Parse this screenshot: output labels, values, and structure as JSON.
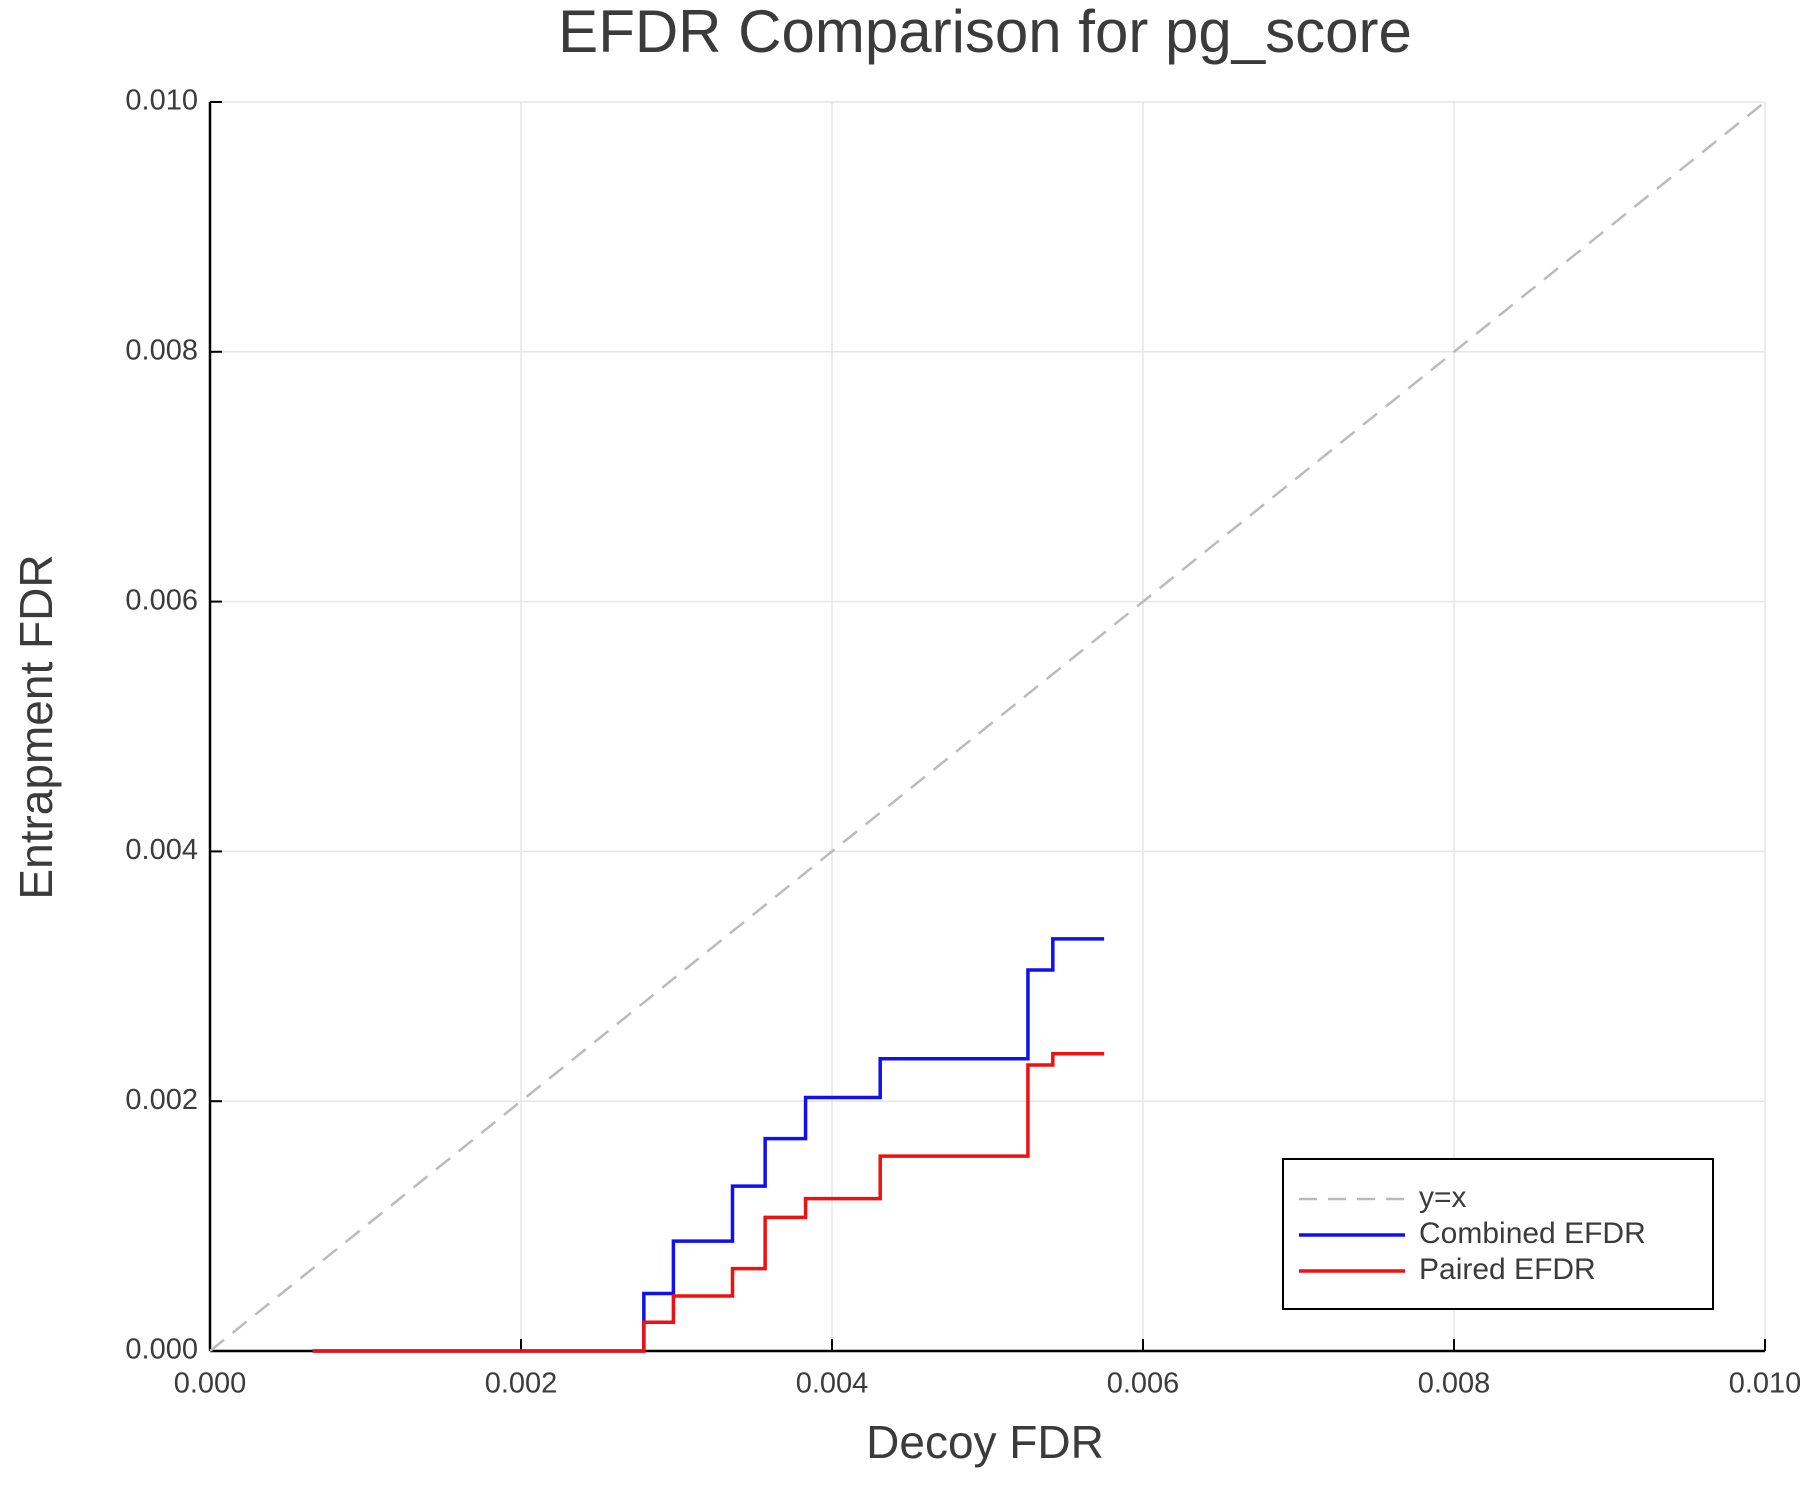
{
  "chart_data": {
    "type": "line",
    "title": "EFDR Comparison for pg_score",
    "x_label": "Decoy FDR",
    "y_label": "Entrapment FDR",
    "xlim": [
      0,
      0.01
    ],
    "ylim": [
      0,
      0.01
    ],
    "xticks": [
      {
        "value": 0,
        "label": "0.000"
      },
      {
        "value": 0.002,
        "label": "0.002"
      },
      {
        "value": 0.004,
        "label": "0.004"
      },
      {
        "value": 0.006,
        "label": "0.006"
      },
      {
        "value": 0.008,
        "label": "0.008"
      },
      {
        "value": 0.01,
        "label": "0.010"
      }
    ],
    "yticks": [
      {
        "value": 0,
        "label": "0.000"
      },
      {
        "value": 0.002,
        "label": "0.002"
      },
      {
        "value": 0.004,
        "label": "0.004"
      },
      {
        "value": 0.006,
        "label": "0.006"
      },
      {
        "value": 0.008,
        "label": "0.008"
      },
      {
        "value": 0.01,
        "label": "0.010"
      }
    ],
    "grid": true,
    "legend": "lower right",
    "series": [
      {
        "name": "y=x",
        "color": "#bbbbbb",
        "dashed": true,
        "x": [
          0,
          0.01
        ],
        "values": [
          0,
          0.01
        ]
      },
      {
        "name": "Combined EFDR",
        "color": "#1010f0",
        "dashed": false,
        "x": [
          0.00066,
          0.00279,
          0.00279,
          0.00298,
          0.00298,
          0.00336,
          0.00336,
          0.00357,
          0.00357,
          0.00383,
          0.00383,
          0.00431,
          0.00431,
          0.00526,
          0.00526,
          0.00542,
          0.00542,
          0.00575
        ],
        "values": [
          0,
          0,
          0.00046,
          0.00046,
          0.00088,
          0.00088,
          0.00132,
          0.00132,
          0.0017,
          0.0017,
          0.00203,
          0.00203,
          0.00234,
          0.00234,
          0.00305,
          0.00305,
          0.0033,
          0.0033
        ]
      },
      {
        "name": "Paired EFDR",
        "color": "#f01010",
        "dashed": false,
        "x": [
          0.00066,
          0.00279,
          0.00279,
          0.00298,
          0.00298,
          0.00336,
          0.00336,
          0.00357,
          0.00357,
          0.00383,
          0.00383,
          0.00431,
          0.00431,
          0.00526,
          0.00526,
          0.00542,
          0.00542,
          0.00575
        ],
        "values": [
          0,
          0,
          0.00023,
          0.00023,
          0.00044,
          0.00044,
          0.00066,
          0.00066,
          0.00107,
          0.00107,
          0.00122,
          0.00122,
          0.00156,
          0.00156,
          0.00229,
          0.00229,
          0.00238,
          0.00238
        ]
      }
    ]
  }
}
